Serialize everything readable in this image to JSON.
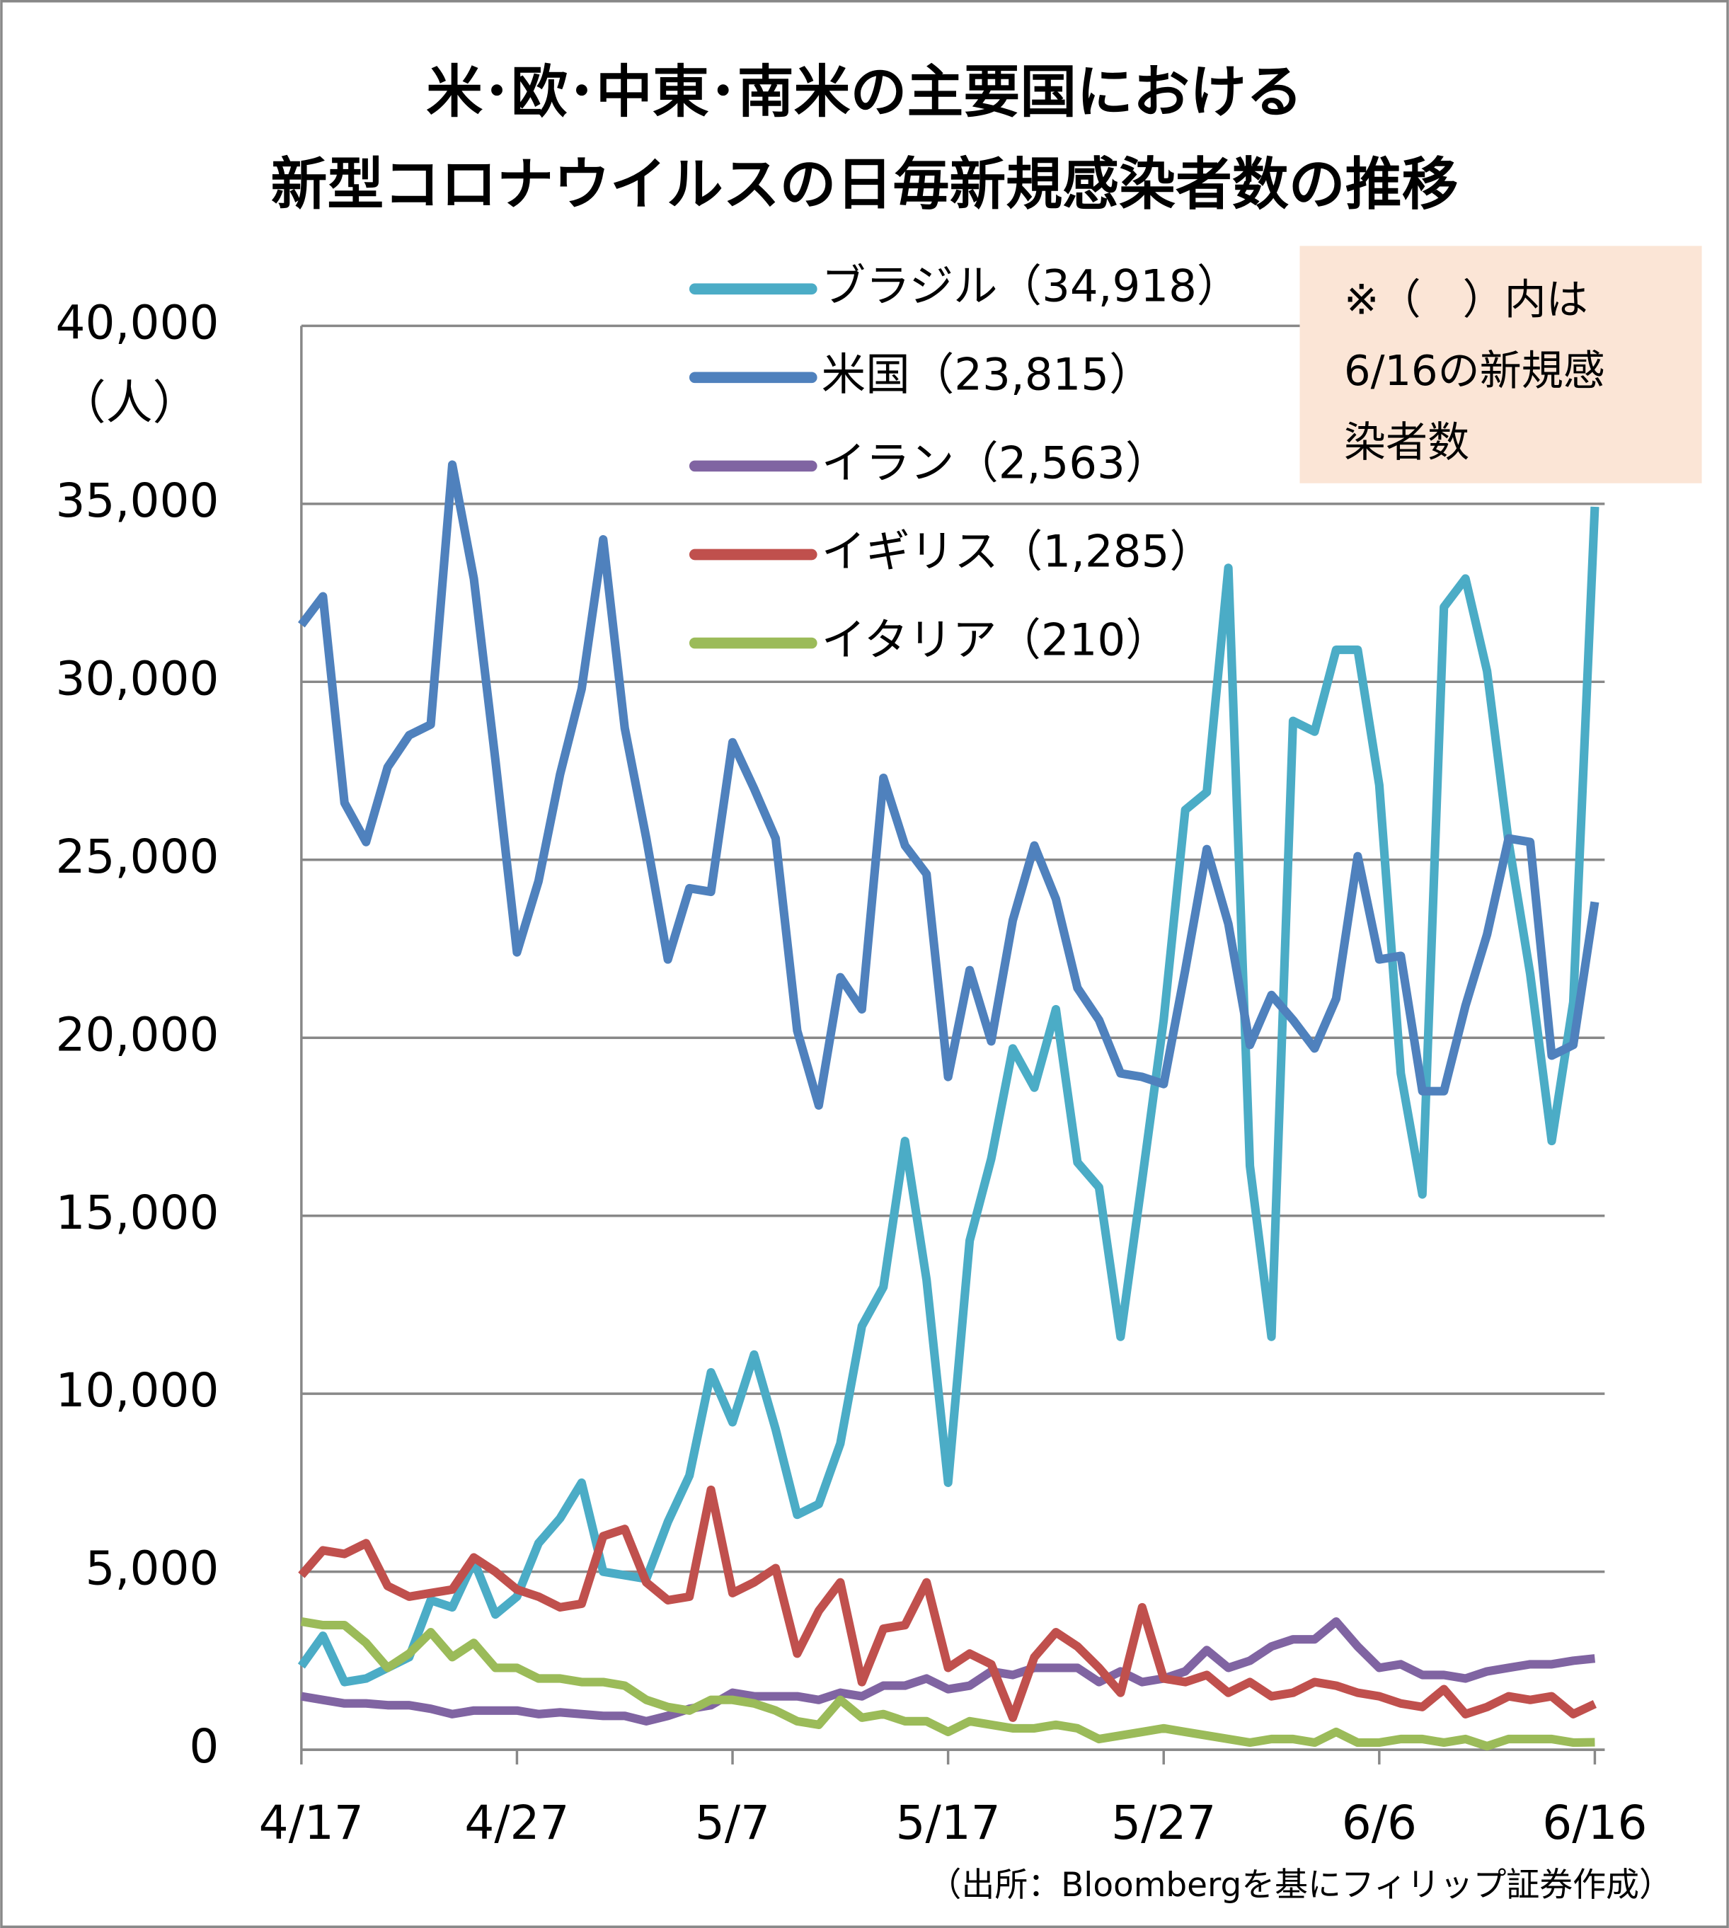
{
  "chart_data": {
    "type": "line",
    "title": [
      "米･欧･中東･南米の主要国における",
      "新型コロナウイルスの日毎新規感染者数の推移"
    ],
    "y_label": "（人）",
    "note": [
      "※（　）内は",
      "6/16の新規感",
      "染者数"
    ],
    "source": "（出所：Bloombergを基にフィリップ証券作成）",
    "categories": [
      "4/17",
      null,
      null,
      null,
      null,
      null,
      null,
      null,
      null,
      null,
      "4/27",
      null,
      null,
      null,
      null,
      null,
      null,
      null,
      null,
      null,
      "5/7",
      null,
      null,
      null,
      null,
      null,
      null,
      null,
      null,
      null,
      "5/17",
      null,
      null,
      null,
      null,
      null,
      null,
      null,
      null,
      null,
      "5/27",
      null,
      null,
      null,
      null,
      null,
      null,
      null,
      null,
      null,
      "6/6",
      null,
      null,
      null,
      null,
      null,
      null,
      null,
      null,
      null,
      "6/16"
    ],
    "ylim": [
      0,
      40000
    ],
    "yticks": [
      0,
      {
        "value": 5000,
        "label": "5,000"
      },
      {
        "value": 10000,
        "label": "10,000"
      },
      {
        "value": 15000,
        "label": "15,000"
      },
      {
        "value": 20000,
        "label": "20,000"
      },
      {
        "value": 25000,
        "label": "25,000"
      },
      {
        "value": 30000,
        "label": "30,000"
      },
      {
        "value": 35000,
        "label": "35,000"
      },
      {
        "value": 40000,
        "label": "40,000"
      }
    ],
    "grid": true,
    "series": [
      {
        "name": "ブラジル（34,918）",
        "color": "#4bacc6",
        "values": [
          2350,
          3200,
          1900,
          2000,
          2300,
          2600,
          4200,
          4000,
          5300,
          3800,
          4300,
          5800,
          6500,
          7500,
          5000,
          4900,
          4800,
          6400,
          7700,
          10600,
          9200,
          11100,
          9000,
          6600,
          6900,
          8600,
          11900,
          13000,
          17100,
          13200,
          7500,
          14300,
          16600,
          19700,
          18600,
          20800,
          16500,
          15800,
          11600,
          16000,
          20500,
          26400,
          26900,
          33200,
          16400,
          11600,
          28900,
          28600,
          30900,
          30900,
          27100,
          19000,
          15600,
          32100,
          32900,
          30300,
          25500,
          21800,
          17100,
          21000,
          34918
        ]
      },
      {
        "name": "米国（23,815）",
        "color": "#4f81bd",
        "values": [
          31600,
          32400,
          26600,
          25500,
          27600,
          28500,
          28800,
          36100,
          32900,
          27800,
          22400,
          24400,
          27400,
          29800,
          34000,
          28700,
          25600,
          22200,
          24200,
          24100,
          28300,
          27000,
          25600,
          20200,
          18100,
          21700,
          20800,
          27300,
          25400,
          24600,
          18900,
          21900,
          19900,
          23300,
          25400,
          23900,
          21400,
          20500,
          19000,
          18900,
          18700,
          21900,
          25300,
          23200,
          19800,
          21200,
          20500,
          19700,
          21100,
          25100,
          22200,
          22300,
          18500,
          18500,
          20900,
          22900,
          25600,
          25500,
          19500,
          19800,
          23815
        ]
      },
      {
        "name": "イラン（2,563）",
        "color": "#8064a2",
        "values": [
          1500,
          1400,
          1300,
          1300,
          1250,
          1250,
          1150,
          1000,
          1100,
          1100,
          1100,
          1000,
          1050,
          1000,
          950,
          950,
          800,
          950,
          1150,
          1250,
          1600,
          1500,
          1500,
          1500,
          1400,
          1600,
          1500,
          1800,
          1800,
          2000,
          1700,
          1800,
          2200,
          2100,
          2300,
          2300,
          2300,
          1900,
          2200,
          1900,
          2000,
          2200,
          2800,
          2300,
          2500,
          2900,
          3100,
          3100,
          3600,
          2900,
          2300,
          2400,
          2100,
          2100,
          2000,
          2200,
          2300,
          2400,
          2400,
          2500,
          2563
        ]
      },
      {
        "name": "イギリス（1,285）",
        "color": "#c0504d",
        "values": [
          4900,
          5600,
          5500,
          5800,
          4600,
          4300,
          4400,
          4500,
          5400,
          5000,
          4500,
          4300,
          4000,
          4100,
          6000,
          6200,
          4700,
          4200,
          4300,
          7300,
          4400,
          4700,
          5100,
          2700,
          3900,
          4700,
          1900,
          3400,
          3500,
          4700,
          2300,
          2700,
          2400,
          900,
          2600,
          3300,
          2900,
          2300,
          1600,
          4000,
          2000,
          1900,
          2100,
          1600,
          1900,
          1500,
          1600,
          1900,
          1800,
          1600,
          1500,
          1300,
          1200,
          1700,
          1000,
          1200,
          1500,
          1400,
          1500,
          1000,
          1285
        ]
      },
      {
        "name": "イタリア（210）",
        "color": "#9bbb59",
        "values": [
          3600,
          3500,
          3500,
          3000,
          2300,
          2700,
          3300,
          2600,
          3000,
          2300,
          2300,
          2000,
          2000,
          1900,
          1900,
          1800,
          1400,
          1200,
          1100,
          1400,
          1400,
          1300,
          1100,
          800,
          700,
          1400,
          900,
          1000,
          800,
          800,
          500,
          800,
          700,
          600,
          600,
          700,
          600,
          300,
          400,
          500,
          600,
          500,
          400,
          300,
          200,
          300,
          300,
          200,
          500,
          200,
          200,
          300,
          300,
          200,
          300,
          100,
          300,
          300,
          300,
          200,
          210
        ]
      }
    ]
  }
}
